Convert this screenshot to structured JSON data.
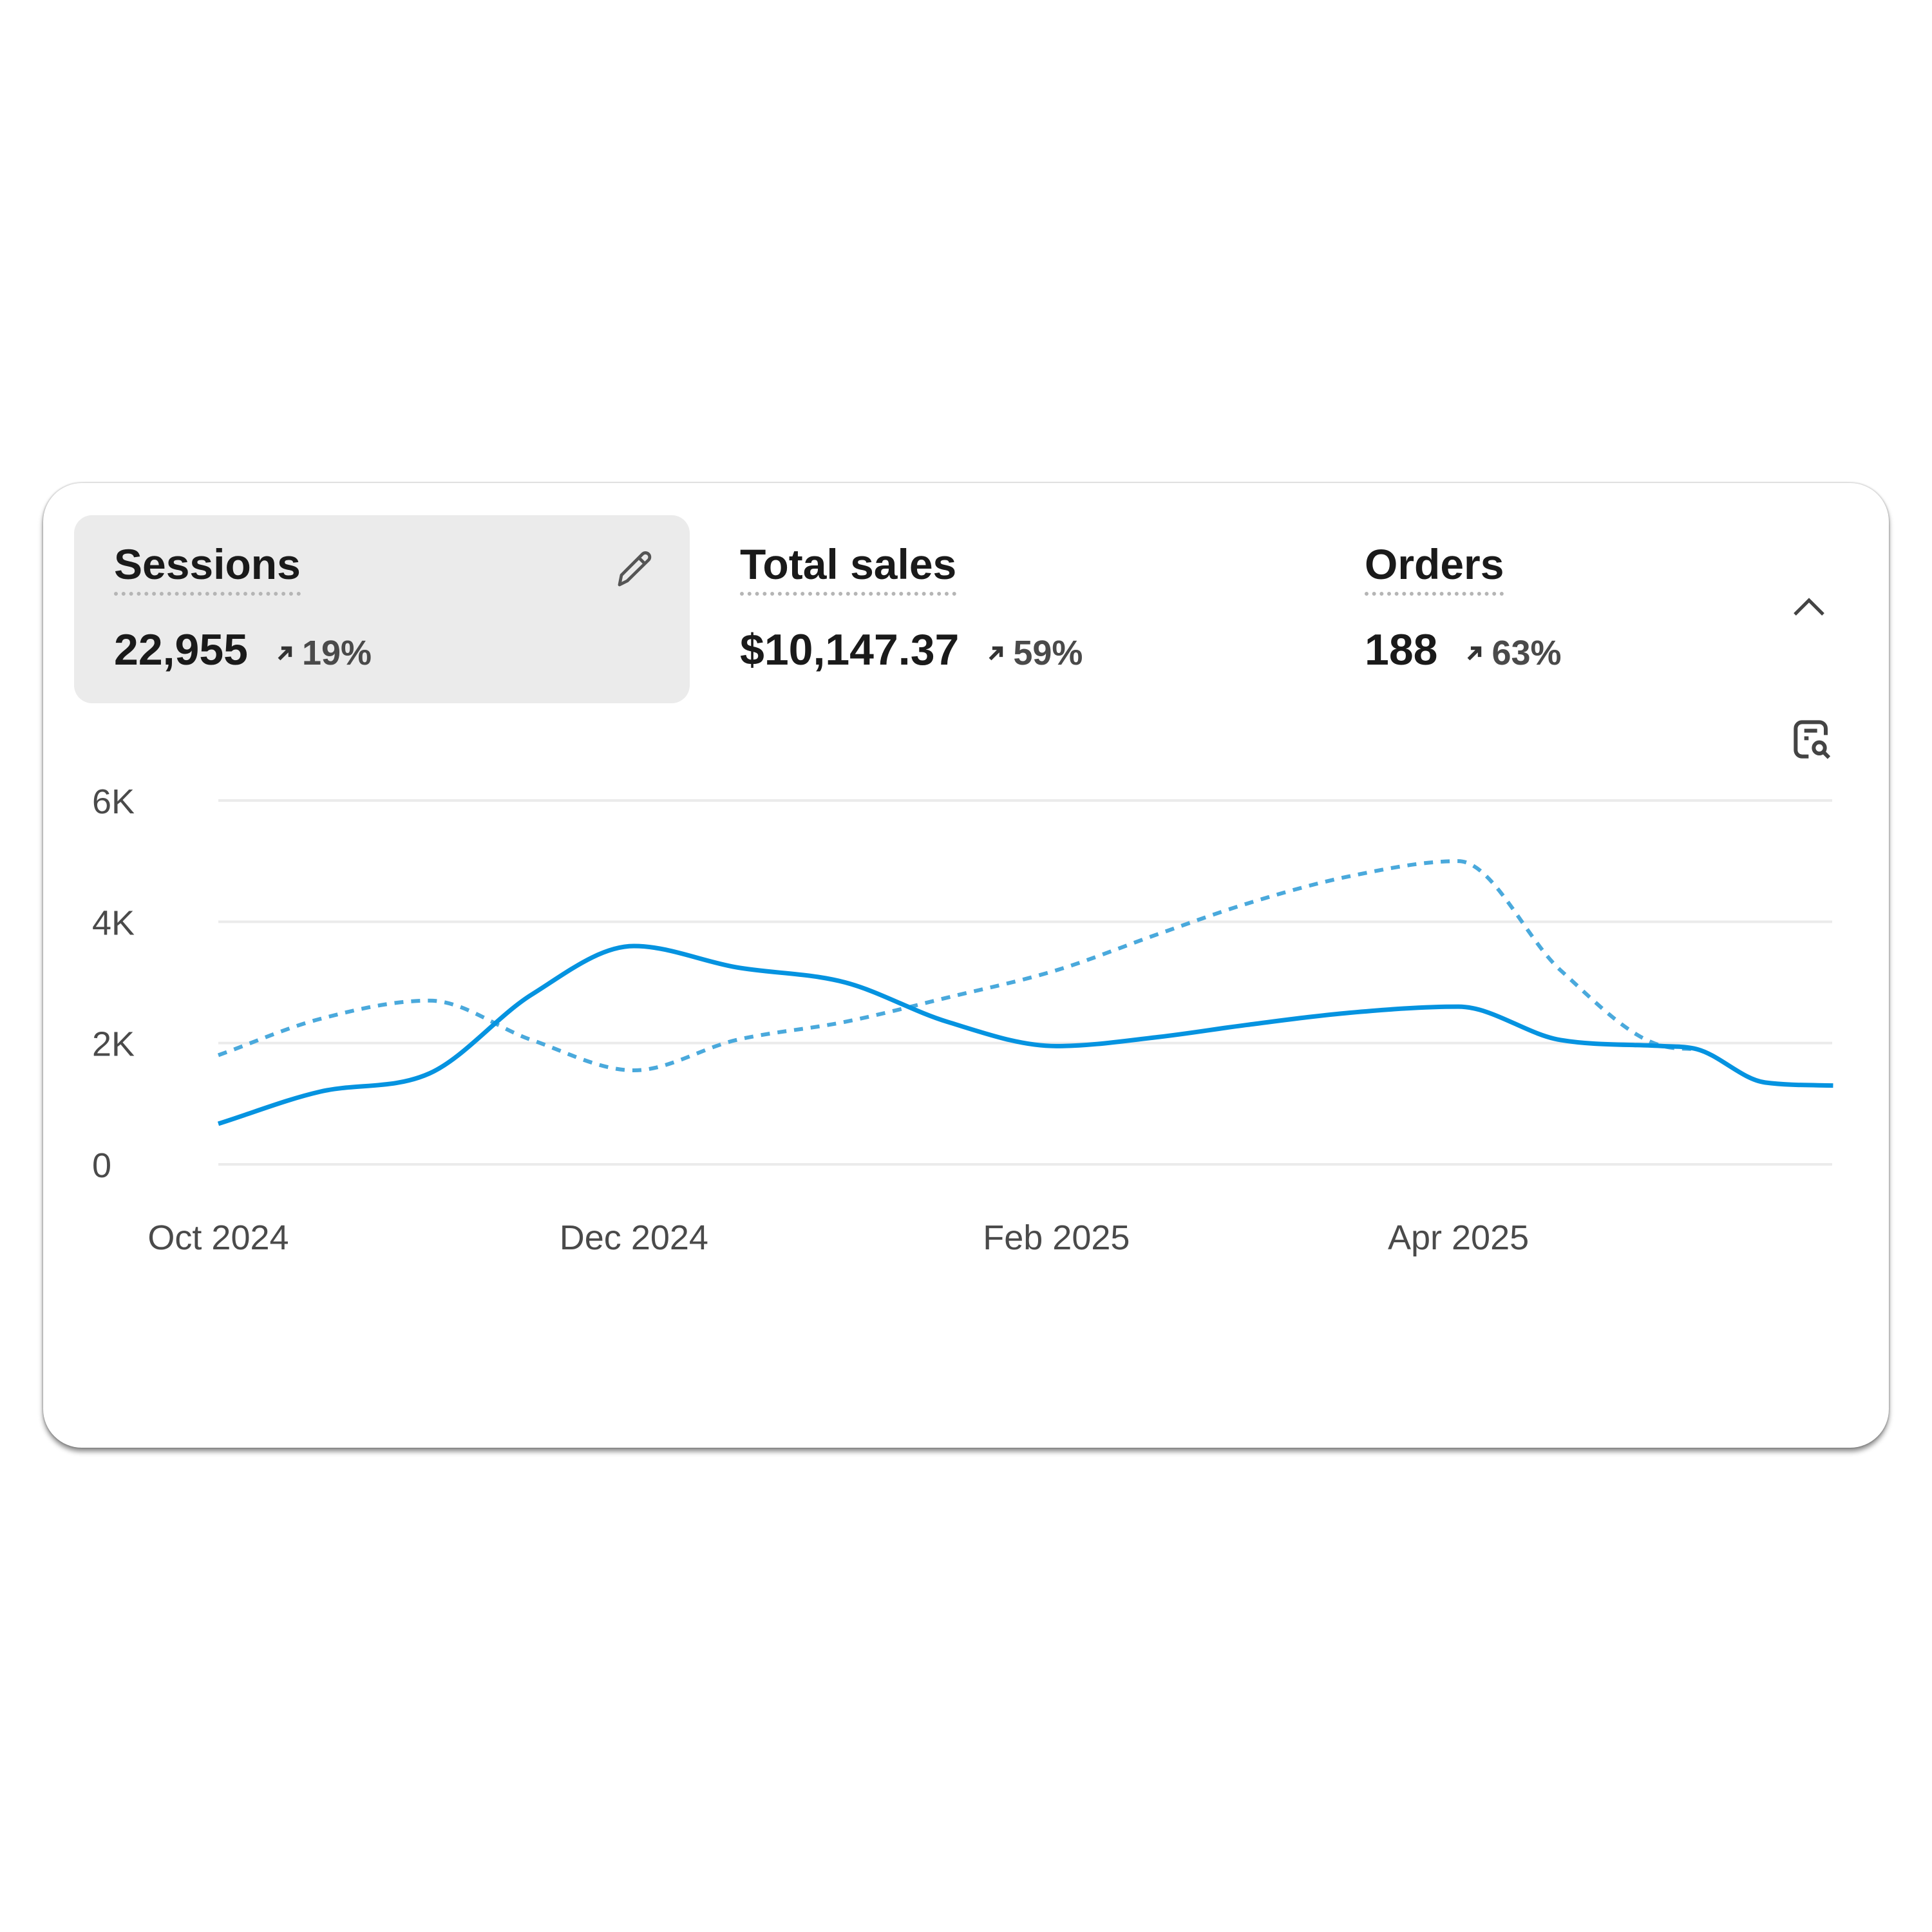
{
  "metrics": [
    {
      "title": "Sessions",
      "value": "22,955",
      "change": "19%",
      "direction": "up",
      "active": true,
      "icon": "pencil-icon"
    },
    {
      "title": "Total sales",
      "value": "$10,147.37",
      "change": "59%",
      "direction": "up",
      "active": false
    },
    {
      "title": "Orders",
      "value": "188",
      "change": "63%",
      "direction": "up",
      "active": false
    }
  ],
  "icons": {
    "collapse": "chevron-up-icon",
    "insights": "report-search-icon"
  },
  "colors": {
    "current": "#0593e0",
    "previous": "#4aa9dc",
    "grid": "#ebebeb"
  },
  "chart_data": {
    "type": "line",
    "title": "",
    "xlabel": "",
    "ylabel": "",
    "x_ticks": [
      "Oct 2024",
      "Dec 2024",
      "Feb 2025",
      "Apr 2025"
    ],
    "y_ticks": [
      "0",
      "2K",
      "4K",
      "6K"
    ],
    "ylim": [
      0,
      6000
    ],
    "grid": true,
    "x": [
      "2024-10-01",
      "2024-10-16",
      "2024-11-01",
      "2024-11-16",
      "2024-12-01",
      "2024-12-16",
      "2025-01-01",
      "2025-01-16",
      "2025-02-01",
      "2025-02-16",
      "2025-03-01",
      "2025-03-16",
      "2025-04-01",
      "2025-04-16",
      "2025-05-01",
      "2025-05-06",
      "2025-05-16",
      "2025-05-26"
    ],
    "series": [
      {
        "style": "solid",
        "values": [
          670,
          1200,
          1500,
          2800,
          3600,
          3250,
          3000,
          2350,
          1950,
          2100,
          2300,
          2500,
          2600,
          2050,
          1950,
          1900,
          1350,
          1300
        ]
      },
      {
        "style": "dashed",
        "values": [
          1800,
          2400,
          2700,
          2050,
          1550,
          2050,
          2350,
          2750,
          3200,
          3800,
          4300,
          4750,
          5000,
          3200,
          1950,
          1900,
          null,
          null
        ]
      }
    ]
  }
}
